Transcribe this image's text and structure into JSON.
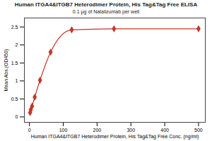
{
  "chart_data": {
    "type": "line",
    "title": "Human ITGA4&ITGB7 Heterodimer Protein, His Tag&Tag Free ELISA",
    "subtitle": "0.1 µg of Natalizumab per well",
    "x_label": "Human ITGA4&ITGB7 Heterodimer Protein, His Tag&Tag Free Conc. (ng/ml)",
    "y_label": "Mean Abs.(OD450)",
    "series": [
      {
        "name": "Natalizumab",
        "color": "#c0392b",
        "marker": "diamond",
        "x": [
          1.95,
          3.9,
          7.8,
          15.6,
          31.25,
          62.5,
          125,
          250,
          500
        ],
        "values": [
          0.12,
          0.2,
          0.3,
          0.55,
          1.02,
          1.8,
          2.42,
          2.45,
          2.45
        ]
      }
    ],
    "xlim": [
      -15,
      520
    ],
    "xticks": [
      0,
      100,
      200,
      300,
      400,
      500
    ],
    "ylim": [
      -0.15,
      2.75
    ],
    "yticks": [
      0,
      0.5,
      1,
      1.5,
      2,
      2.5
    ],
    "grid": false
  }
}
